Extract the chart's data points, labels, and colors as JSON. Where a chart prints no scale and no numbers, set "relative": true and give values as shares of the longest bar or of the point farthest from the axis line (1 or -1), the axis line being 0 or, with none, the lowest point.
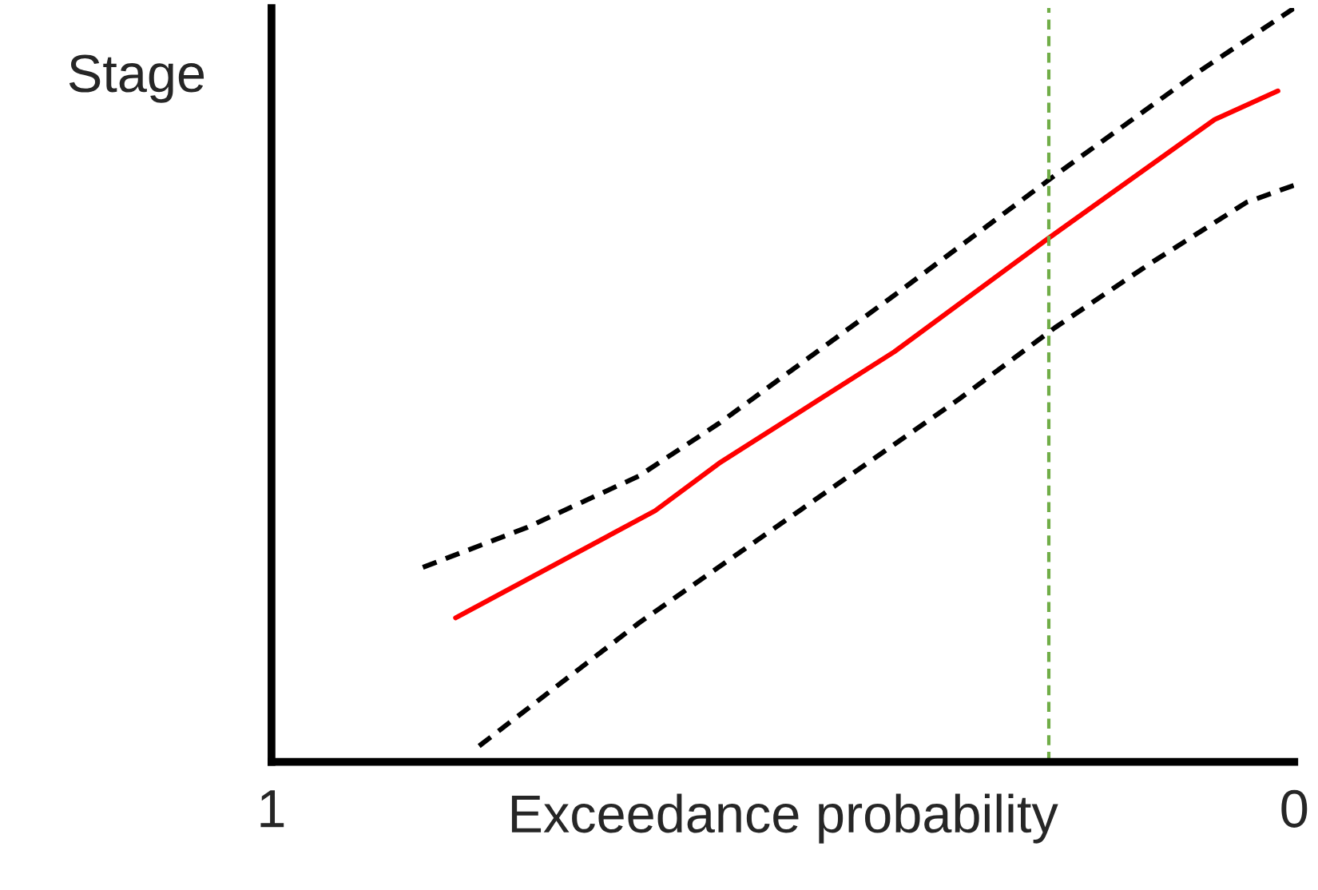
{
  "chart_data": {
    "type": "line",
    "relative": true,
    "xlabel": "Exceedance probability",
    "ylabel": "Stage",
    "xlim": [
      1,
      0
    ],
    "xticks": [
      1,
      0
    ],
    "tick_labels": "x",
    "grid": false,
    "marker": "none",
    "series": [
      {
        "color": "#ff0000",
        "line_style": "solid",
        "x": [
          0.82,
          0.625,
          0.5625,
          0.391,
          0.242,
          0.078,
          0.016
        ],
        "values": [
          0.191,
          0.333,
          0.396,
          0.544,
          0.693,
          0.852,
          0.89
        ]
      },
      {
        "color": "#000000",
        "line_style": "dashed",
        "x": [
          0.852,
          0.75,
          0.641,
          0.5625,
          0.391,
          0.234,
          0.094,
          0.0
        ],
        "values": [
          0.258,
          0.311,
          0.379,
          0.449,
          0.619,
          0.778,
          0.915,
          1.0
        ]
      },
      {
        "color": "#000000",
        "line_style": "dashed",
        "x": [
          0.797,
          0.641,
          0.484,
          0.328,
          0.234,
          0.141,
          0.047,
          0.0
        ],
        "values": [
          0.021,
          0.184,
          0.333,
          0.481,
          0.576,
          0.661,
          0.742,
          0.765
        ]
      }
    ],
    "ref_lines": [
      {
        "axis": "x",
        "value": 0.24,
        "color": "#70ad47",
        "line_style": "dashed"
      }
    ]
  }
}
